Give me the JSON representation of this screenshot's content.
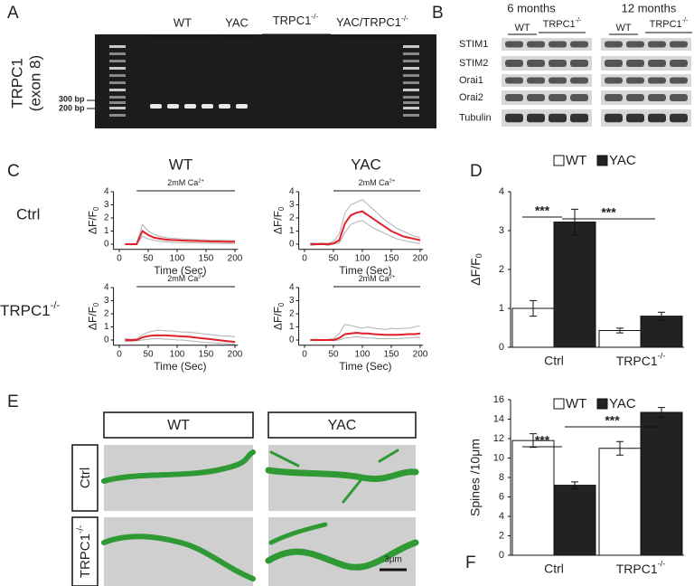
{
  "panel_labels": [
    "A",
    "B",
    "C",
    "D",
    "E",
    "F"
  ],
  "gel": {
    "y_label": [
      "TRPC1",
      "(exon 8)"
    ],
    "size_markers": [
      "300 bp",
      "200 bp"
    ],
    "groups": [
      "WT",
      "YAC",
      {
        "text": "TRPC1",
        "sup": "-/-"
      },
      {
        "text": "YAC/TRPC1",
        "sup": "-/-"
      }
    ]
  },
  "blot": {
    "ages": [
      "6 months",
      "12 months"
    ],
    "groups": [
      "WT",
      {
        "text": "TRPC1",
        "sup": "-/-"
      }
    ],
    "proteins": [
      "STIM1",
      "STIM2",
      "Orai1",
      "Orai2",
      "Tubulin"
    ]
  },
  "imaging": {
    "columns": [
      "WT",
      "YAC"
    ],
    "rows": [
      "Ctrl",
      {
        "text": "TRPC1",
        "sup": "-/-"
      }
    ]
  },
  "images": {
    "columns": [
      "WT",
      "YAC"
    ],
    "rows": [
      "Ctrl",
      {
        "text": "TRPC1",
        "sup": "-/-"
      }
    ],
    "scale_bar": "3μm"
  },
  "chart_data": [
    {
      "type": "line",
      "y_label": {
        "text": "ΔF/F",
        "sub": "0"
      },
      "x_label": "Time (Sec)",
      "stimulus": {
        "label": {
          "text": "2mM Ca",
          "sup": "2+"
        },
        "start": 30,
        "end": 200
      },
      "x": [
        10,
        20,
        30,
        40,
        50,
        60,
        70,
        80,
        90,
        100,
        110,
        120,
        130,
        140,
        150,
        160,
        170,
        180,
        190,
        200
      ],
      "series": [
        {
          "color": "#b0b0b0",
          "values": [
            0.05,
            0,
            0.05,
            1.5,
            1.0,
            0.75,
            0.6,
            0.5,
            0.45,
            0.42,
            0.4,
            0.38,
            0.35,
            0.34,
            0.32,
            0.3,
            0.3,
            0.29,
            0.28,
            0.28
          ]
        },
        {
          "color": "#b0b0b0",
          "values": [
            0,
            -0.05,
            0,
            0.6,
            0.4,
            0.3,
            0.22,
            0.18,
            0.15,
            0.12,
            0.1,
            0.1,
            0.1,
            0.08,
            0.08,
            0.06,
            0.06,
            0.05,
            0.05,
            0.05
          ]
        },
        {
          "color": "#e0202a",
          "values": [
            0,
            0,
            0,
            1.0,
            0.7,
            0.5,
            0.42,
            0.35,
            0.32,
            0.3,
            0.28,
            0.26,
            0.25,
            0.23,
            0.22,
            0.2,
            0.2,
            0.19,
            0.18,
            0.18
          ]
        }
      ],
      "xlim": [
        -10,
        205
      ],
      "ylim": [
        -0.4,
        4
      ],
      "xticks": [
        0,
        50,
        100,
        150,
        200
      ],
      "yticks": [
        0,
        1,
        2,
        3,
        4
      ]
    },
    {
      "type": "line",
      "y_label": {
        "text": "ΔF/F",
        "sub": "0"
      },
      "x_label": "Time (Sec)",
      "stimulus": {
        "label": {
          "text": "2mM Ca",
          "sup": "2+"
        },
        "start": 50,
        "end": 200
      },
      "x": [
        10,
        20,
        30,
        40,
        50,
        60,
        70,
        80,
        90,
        100,
        110,
        120,
        130,
        140,
        150,
        160,
        170,
        180,
        190,
        200
      ],
      "series": [
        {
          "color": "#b0b0b0",
          "values": [
            0.1,
            0.05,
            0.1,
            0.05,
            0.2,
            0.8,
            2.4,
            3.0,
            3.2,
            3.4,
            3.0,
            2.6,
            2.2,
            1.8,
            1.5,
            1.2,
            1.0,
            0.8,
            0.6,
            0.5
          ]
        },
        {
          "color": "#b0b0b0",
          "values": [
            -0.1,
            -0.05,
            0,
            -0.1,
            0,
            0.1,
            0.9,
            1.5,
            1.7,
            1.8,
            1.5,
            1.2,
            1.0,
            0.8,
            0.6,
            0.4,
            0.3,
            0.2,
            0.1,
            0.05
          ]
        },
        {
          "color": "#e0202a",
          "values": [
            0,
            0,
            0,
            0,
            0.05,
            0.3,
            1.6,
            2.2,
            2.4,
            2.5,
            2.2,
            1.9,
            1.6,
            1.3,
            1.0,
            0.8,
            0.6,
            0.5,
            0.4,
            0.3
          ]
        }
      ],
      "xlim": [
        -10,
        205
      ],
      "ylim": [
        -0.4,
        4
      ],
      "xticks": [
        0,
        50,
        100,
        150,
        200
      ],
      "yticks": [
        0,
        1,
        2,
        3,
        4
      ]
    },
    {
      "type": "line",
      "y_label": {
        "text": "ΔF/F",
        "sub": "0"
      },
      "x_label": "Time (Sec)",
      "stimulus": {
        "label": {
          "text": "2mM Ca",
          "sup": "2+"
        },
        "start": 30,
        "end": 200
      },
      "x": [
        10,
        20,
        30,
        40,
        50,
        60,
        70,
        80,
        90,
        100,
        110,
        120,
        130,
        140,
        150,
        160,
        170,
        180,
        190,
        200
      ],
      "series": [
        {
          "color": "#b0b0b0",
          "values": [
            0.1,
            0.05,
            0.1,
            0.4,
            0.6,
            0.7,
            0.75,
            0.7,
            0.7,
            0.65,
            0.6,
            0.6,
            0.55,
            0.5,
            0.45,
            0.4,
            0.35,
            0.3,
            0.3,
            0.25
          ]
        },
        {
          "color": "#b0b0b0",
          "values": [
            -0.1,
            -0.1,
            -0.05,
            0,
            0.05,
            0.1,
            0.1,
            0.05,
            0.05,
            0,
            0,
            -0.05,
            -0.1,
            -0.15,
            -0.2,
            -0.2,
            -0.25,
            -0.25,
            -0.3,
            -0.3
          ]
        },
        {
          "color": "#e0202a",
          "values": [
            0,
            0,
            0,
            0.2,
            0.3,
            0.35,
            0.35,
            0.35,
            0.33,
            0.3,
            0.28,
            0.25,
            0.2,
            0.15,
            0.1,
            0.05,
            0,
            -0.05,
            -0.1,
            -0.15
          ]
        }
      ],
      "xlim": [
        -10,
        205
      ],
      "ylim": [
        -0.4,
        4
      ],
      "xticks": [
        0,
        50,
        100,
        150,
        200
      ],
      "yticks": [
        0,
        1,
        2,
        3,
        4
      ]
    },
    {
      "type": "line",
      "y_label": {
        "text": "ΔF/F",
        "sub": "0"
      },
      "x_label": "Time (Sec)",
      "stimulus": {
        "label": {
          "text": "2mM Ca",
          "sup": "2+"
        },
        "start": 50,
        "end": 200
      },
      "x": [
        10,
        20,
        30,
        40,
        50,
        60,
        70,
        80,
        90,
        100,
        110,
        120,
        130,
        140,
        150,
        160,
        170,
        180,
        190,
        200
      ],
      "series": [
        {
          "color": "#b0b0b0",
          "values": [
            0.05,
            0.05,
            0,
            0.05,
            0.1,
            0.5,
            1.2,
            1.1,
            1.0,
            0.9,
            1.0,
            0.9,
            0.85,
            0.8,
            0.9,
            0.85,
            0.9,
            0.9,
            1.0,
            1.1
          ]
        },
        {
          "color": "#b0b0b0",
          "values": [
            -0.05,
            0,
            -0.05,
            0,
            -0.05,
            0,
            0.15,
            0.2,
            0.25,
            0.2,
            0.15,
            0.15,
            0.1,
            0.1,
            0.1,
            0.1,
            0.15,
            0.15,
            0.2,
            0.2
          ]
        },
        {
          "color": "#e0202a",
          "values": [
            0,
            0,
            0,
            0,
            0,
            0.15,
            0.45,
            0.5,
            0.55,
            0.5,
            0.5,
            0.45,
            0.42,
            0.4,
            0.4,
            0.4,
            0.42,
            0.45,
            0.45,
            0.5
          ]
        }
      ],
      "xlim": [
        -10,
        205
      ],
      "ylim": [
        -0.4,
        4
      ],
      "xticks": [
        0,
        50,
        100,
        150,
        200
      ],
      "yticks": [
        0,
        1,
        2,
        3,
        4
      ]
    },
    {
      "type": "bar",
      "y_label": {
        "text": "ΔF/F",
        "sub": "0"
      },
      "categories": [
        "Ctrl",
        {
          "text": "TRPC1",
          "sup": "-/-"
        }
      ],
      "series": [
        {
          "name": "WT",
          "color": "#ffffff",
          "values": [
            1.0,
            0.43
          ],
          "errors": [
            0.2,
            0.06
          ]
        },
        {
          "name": "YAC",
          "color": "#222222",
          "values": [
            3.22,
            0.8
          ],
          "errors": [
            0.33,
            0.1
          ]
        }
      ],
      "annotations": [
        "***",
        "***"
      ],
      "ylim": [
        0,
        4
      ],
      "yticks": [
        0,
        1,
        2,
        3,
        4
      ]
    },
    {
      "type": "bar",
      "y_label": "Spines /10μm",
      "categories": [
        "Ctrl",
        {
          "text": "TRPC1",
          "sup": "-/-"
        }
      ],
      "series": [
        {
          "name": "WT",
          "color": "#ffffff",
          "values": [
            11.8,
            11.0
          ],
          "errors": [
            0.7,
            0.7
          ]
        },
        {
          "name": "YAC",
          "color": "#222222",
          "values": [
            7.2,
            14.7
          ],
          "errors": [
            0.35,
            0.5
          ]
        }
      ],
      "annotations": [
        "***",
        "***"
      ],
      "ylim": [
        0,
        16
      ],
      "yticks": [
        0,
        2,
        4,
        6,
        8,
        10,
        12,
        14,
        16
      ]
    }
  ]
}
